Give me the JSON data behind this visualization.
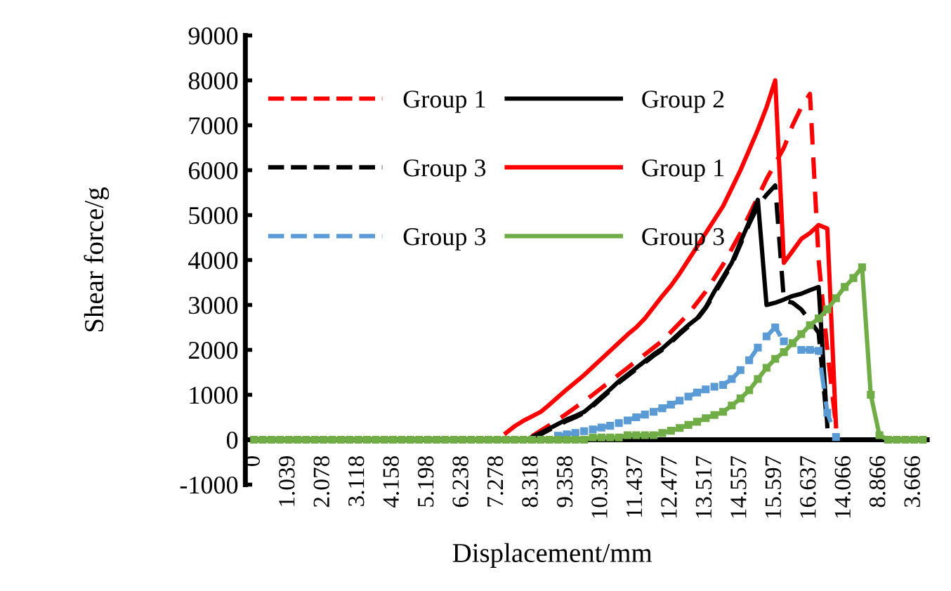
{
  "chart_data": {
    "type": "line",
    "xlabel": "Displacement/mm",
    "ylabel": "Shear force/g",
    "categories": [
      "0",
      null,
      null,
      null,
      "1.039",
      null,
      null,
      null,
      "2.078",
      null,
      null,
      null,
      "3.118",
      null,
      null,
      null,
      "4.158",
      null,
      null,
      null,
      "5.198",
      null,
      null,
      null,
      "6.238",
      null,
      null,
      null,
      "7.278",
      null,
      null,
      null,
      "8.318",
      null,
      null,
      null,
      "9.358",
      null,
      null,
      null,
      "10.397",
      null,
      null,
      null,
      "11.437",
      null,
      null,
      null,
      "12.477",
      null,
      null,
      null,
      "13.517",
      null,
      null,
      null,
      "14.557",
      null,
      null,
      null,
      "15.597",
      null,
      null,
      null,
      "16.637",
      null,
      null,
      null,
      "14.066",
      null,
      null,
      null,
      "8.866",
      null,
      null,
      null,
      "3.666",
      null
    ],
    "series": [
      {
        "name": "Group 1",
        "color": "#ff0000",
        "line_style": "dashed",
        "values": [
          null,
          null,
          null,
          null,
          null,
          null,
          null,
          null,
          null,
          null,
          null,
          null,
          null,
          null,
          null,
          null,
          null,
          null,
          null,
          null,
          null,
          null,
          null,
          null,
          null,
          null,
          null,
          null,
          null,
          null,
          null,
          null,
          80,
          200,
          320,
          450,
          580,
          720,
          860,
          1000,
          1150,
          1300,
          1450,
          1600,
          1750,
          1900,
          2050,
          2200,
          2400,
          2600,
          2800,
          3050,
          3300,
          3600,
          3900,
          4250,
          4600,
          5000,
          5400,
          5800,
          6150,
          6500,
          7000,
          7400,
          7700,
          4000,
          2000,
          300,
          null,
          null,
          null,
          null,
          null,
          null,
          null,
          null,
          null,
          null
        ]
      },
      {
        "name": "Group 2",
        "color": "#000000",
        "line_style": "solid",
        "values": [
          null,
          null,
          null,
          null,
          null,
          null,
          null,
          null,
          null,
          null,
          null,
          null,
          null,
          null,
          null,
          null,
          null,
          null,
          null,
          null,
          null,
          null,
          null,
          null,
          null,
          null,
          null,
          null,
          null,
          null,
          null,
          null,
          60,
          150,
          250,
          350,
          450,
          530,
          620,
          780,
          950,
          1120,
          1300,
          1450,
          1600,
          1750,
          1900,
          2030,
          2200,
          2380,
          2550,
          2700,
          2950,
          3300,
          3620,
          3940,
          4400,
          4850,
          5340,
          3000,
          3050,
          3120,
          3200,
          3250,
          3330,
          3400,
          300,
          null,
          null,
          null,
          null,
          null,
          null,
          null,
          null,
          null,
          null,
          null
        ]
      },
      {
        "name": "Group 3",
        "color": "#000000",
        "line_style": "dashed",
        "values": [
          null,
          null,
          null,
          null,
          null,
          null,
          null,
          null,
          null,
          null,
          null,
          null,
          null,
          null,
          null,
          null,
          null,
          null,
          null,
          null,
          null,
          null,
          null,
          null,
          null,
          null,
          null,
          null,
          null,
          null,
          null,
          null,
          40,
          120,
          220,
          320,
          420,
          500,
          600,
          750,
          920,
          1090,
          1270,
          1420,
          1570,
          1720,
          1870,
          2000,
          2170,
          2350,
          2520,
          2680,
          2930,
          3250,
          3580,
          3900,
          4350,
          4800,
          5200,
          5450,
          5660,
          3100,
          3050,
          2900,
          2650,
          2380,
          300,
          null,
          null,
          null,
          null,
          null,
          null,
          null,
          null,
          null,
          null,
          null
        ]
      },
      {
        "name": "Group 1",
        "color": "#ff0000",
        "line_style": "solid",
        "values": [
          null,
          null,
          null,
          null,
          null,
          null,
          null,
          null,
          null,
          null,
          null,
          null,
          null,
          null,
          null,
          null,
          null,
          null,
          null,
          null,
          null,
          null,
          null,
          null,
          null,
          null,
          null,
          null,
          null,
          150,
          300,
          420,
          520,
          620,
          780,
          950,
          1120,
          1280,
          1440,
          1620,
          1800,
          1980,
          2160,
          2340,
          2500,
          2700,
          2950,
          3200,
          3430,
          3700,
          4000,
          4300,
          4600,
          4900,
          5200,
          5600,
          6000,
          6450,
          6900,
          7400,
          8000,
          3940,
          4200,
          4470,
          4600,
          4780,
          4700,
          300,
          null,
          null,
          null,
          null,
          null,
          null,
          null,
          null,
          null,
          null
        ]
      },
      {
        "name": "Group 3",
        "color": "#5b9bd5",
        "line_style": "dashed",
        "marker": "square",
        "values": [
          null,
          null,
          null,
          null,
          null,
          null,
          null,
          null,
          null,
          null,
          null,
          null,
          null,
          null,
          null,
          null,
          null,
          null,
          null,
          null,
          null,
          null,
          null,
          null,
          null,
          null,
          null,
          null,
          null,
          null,
          null,
          null,
          null,
          null,
          null,
          90,
          120,
          150,
          190,
          230,
          270,
          310,
          370,
          430,
          500,
          560,
          620,
          700,
          780,
          870,
          960,
          1050,
          1120,
          1180,
          1220,
          1350,
          1550,
          1770,
          2050,
          2300,
          2500,
          2190,
          null,
          2000,
          2000,
          1980,
          600,
          60,
          null,
          null,
          null,
          null,
          null,
          null,
          null,
          null,
          null,
          null
        ]
      },
      {
        "name": "Group 3",
        "color": "#70ad47",
        "line_style": "solid",
        "marker": "square",
        "values": [
          0,
          0,
          0,
          0,
          0,
          0,
          0,
          0,
          0,
          0,
          0,
          0,
          0,
          0,
          0,
          0,
          0,
          0,
          0,
          0,
          0,
          0,
          0,
          0,
          0,
          0,
          0,
          0,
          0,
          0,
          0,
          0,
          0,
          0,
          0,
          0,
          0,
          0,
          0,
          50,
          50,
          50,
          50,
          100,
          100,
          100,
          100,
          150,
          200,
          260,
          330,
          400,
          480,
          550,
          620,
          760,
          920,
          1100,
          1350,
          1600,
          1800,
          1950,
          2150,
          2350,
          2550,
          2700,
          2900,
          3150,
          3400,
          3600,
          3840,
          1000,
          100,
          0,
          0,
          0,
          0,
          0
        ]
      }
    ],
    "ylim": [
      -1000,
      9000
    ],
    "yticks": [
      -1000,
      0,
      1000,
      2000,
      3000,
      4000,
      5000,
      6000,
      7000,
      8000,
      9000
    ],
    "grid": false,
    "legend": "top left"
  }
}
